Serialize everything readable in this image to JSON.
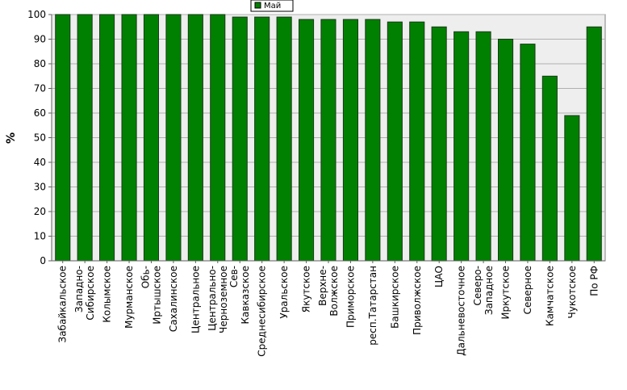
{
  "chart_data": {
    "type": "bar",
    "ylabel": "%",
    "ylim": [
      0,
      100
    ],
    "yticks": [
      0,
      10,
      20,
      30,
      40,
      50,
      60,
      70,
      80,
      90,
      100
    ],
    "grid": true,
    "legend_position": "top-center",
    "series": [
      {
        "name": "Май",
        "color": "#008000",
        "values": [
          100,
          100,
          100,
          100,
          100,
          100,
          100,
          100,
          99,
          99,
          99,
          98,
          98,
          98,
          98,
          97,
          97,
          95,
          93,
          93,
          90,
          88,
          75,
          59,
          95
        ]
      }
    ],
    "categories": [
      [
        "Забайкальское"
      ],
      [
        "Западно-",
        "Сибирское"
      ],
      [
        "Колымское"
      ],
      [
        "Мурманское"
      ],
      [
        "Обь-",
        "Иртышское"
      ],
      [
        "Сахалинское"
      ],
      [
        "Центральное"
      ],
      [
        "Центрально-",
        "Черноземное"
      ],
      [
        "Сев-",
        "Кавказское"
      ],
      [
        "Среднесибирское"
      ],
      [
        "Уральское"
      ],
      [
        "Якутское"
      ],
      [
        "Верхне-",
        "Волжское"
      ],
      [
        "Приморское"
      ],
      [
        "респ.Татарстан"
      ],
      [
        "Башкирское"
      ],
      [
        "Приволжское"
      ],
      [
        "ЦАО"
      ],
      [
        "Дальневосточное"
      ],
      [
        "Северо-",
        "Западное"
      ],
      [
        "Иркутское"
      ],
      [
        "Северное"
      ],
      [
        "Камчатское"
      ],
      [
        "Чукотское"
      ],
      [
        "По РФ"
      ]
    ]
  }
}
